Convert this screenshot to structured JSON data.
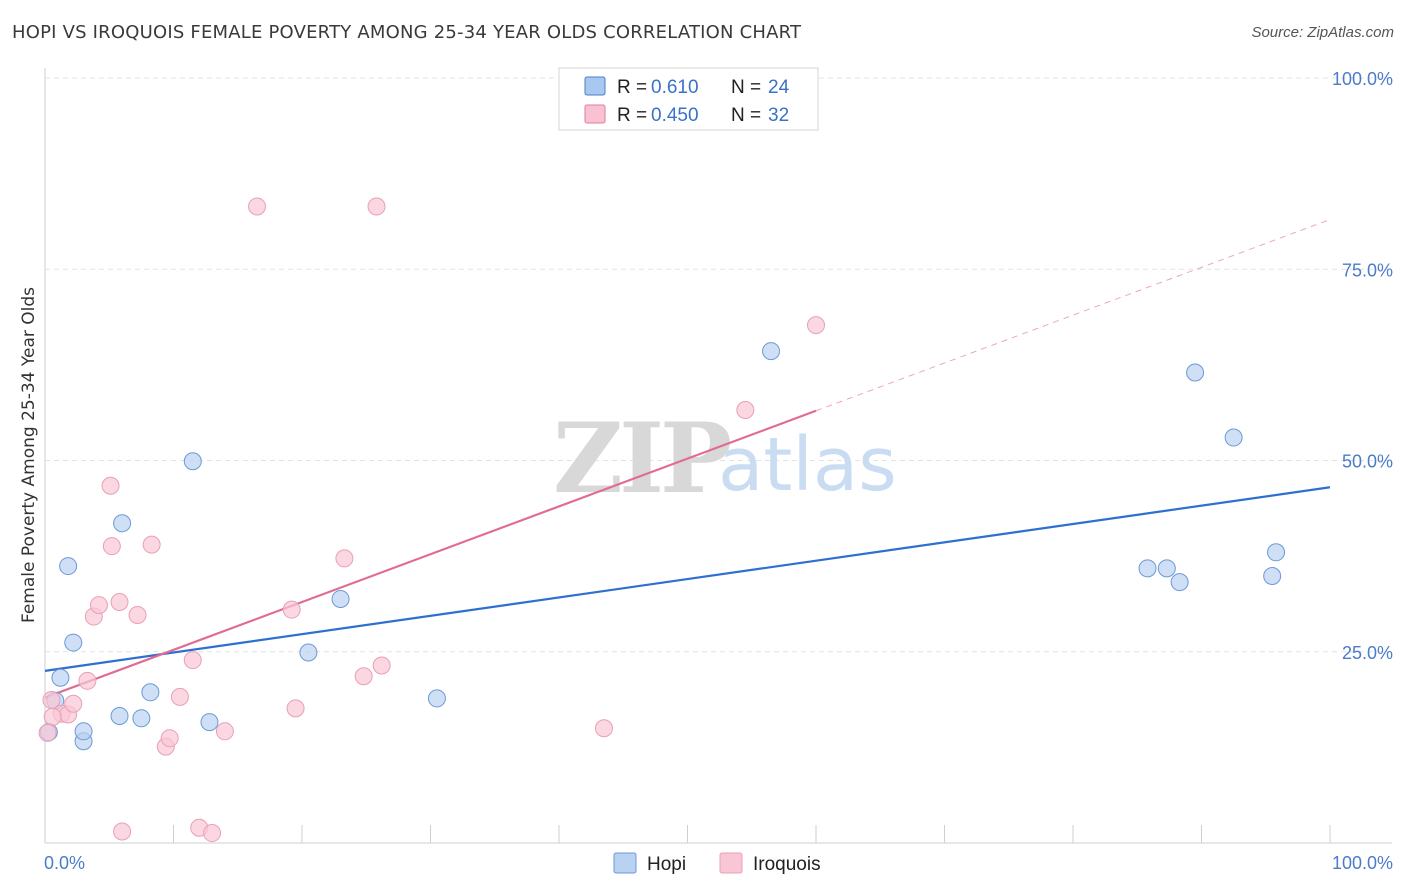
{
  "title": "HOPI VS IROQUOIS FEMALE POVERTY AMONG 25-34 YEAR OLDS CORRELATION CHART",
  "source": "Source: ZipAtlas.com",
  "watermark": {
    "part1": "ZIP",
    "part2": "atlas"
  },
  "chart_data": {
    "type": "scatter",
    "ylabel": "Female Poverty Among 25-34 Year Olds",
    "xlim": [
      0,
      100
    ],
    "ylim": [
      0,
      100
    ],
    "x_tick_labels": {
      "left": "0.0%",
      "right": "100.0%"
    },
    "y_ticks": [
      {
        "value": 25,
        "label": "25.0%"
      },
      {
        "value": 50,
        "label": "50.0%"
      },
      {
        "value": 75,
        "label": "75.0%"
      },
      {
        "value": 100,
        "label": "100.0%"
      }
    ],
    "legend_top": [
      {
        "r_label": "R =",
        "r": "0.610",
        "n_label": "N =",
        "n": "24",
        "color": "#a9c8ef",
        "edge": "#4a7cc9"
      },
      {
        "r_label": "R =",
        "r": "0.450",
        "n_label": "N =",
        "n": "32",
        "color": "#f8c2d2",
        "edge": "#e37a9b"
      }
    ],
    "series": [
      {
        "name": "Hopi",
        "fill": "#b9d2f2",
        "edge": "#6b9ad6",
        "line_color": "#2f6fcf",
        "trend": {
          "x0": 0,
          "y0": 22.5,
          "x1": 100,
          "y1": 46.5
        },
        "points": [
          [
            0.3,
            14.5
          ],
          [
            0.8,
            18.6
          ],
          [
            1.2,
            21.6
          ],
          [
            1.8,
            36.2
          ],
          [
            2.2,
            26.2
          ],
          [
            3.0,
            13.3
          ],
          [
            3.0,
            14.6
          ],
          [
            5.8,
            16.6
          ],
          [
            6.0,
            41.8
          ],
          [
            7.5,
            16.3
          ],
          [
            8.2,
            19.7
          ],
          [
            11.5,
            49.9
          ],
          [
            12.8,
            15.8
          ],
          [
            20.5,
            24.9
          ],
          [
            23.0,
            31.9
          ],
          [
            30.5,
            18.9
          ],
          [
            56.5,
            64.3
          ],
          [
            85.8,
            35.9
          ],
          [
            87.3,
            35.9
          ],
          [
            88.3,
            34.1
          ],
          [
            89.5,
            61.5
          ],
          [
            92.5,
            53.0
          ],
          [
            95.5,
            34.9
          ],
          [
            95.8,
            38.0
          ]
        ]
      },
      {
        "name": "Iroquois",
        "fill": "#f9c6d5",
        "edge": "#e8a0b6",
        "line_color": "#e06b93",
        "trend": {
          "x0": 0,
          "y0": 19.0,
          "x1": 60,
          "y1": 56.5
        },
        "trend_extended": {
          "x0": 60,
          "y0": 56.5,
          "x1": 100,
          "y1": 81.5
        },
        "points": [
          [
            0.5,
            18.7
          ],
          [
            1.3,
            16.9
          ],
          [
            1.8,
            16.8
          ],
          [
            2.2,
            18.2
          ],
          [
            3.3,
            21.2
          ],
          [
            3.8,
            29.6
          ],
          [
            4.2,
            31.1
          ],
          [
            5.1,
            46.7
          ],
          [
            5.2,
            38.8
          ],
          [
            5.8,
            31.5
          ],
          [
            6.0,
            1.5
          ],
          [
            7.2,
            29.8
          ],
          [
            8.3,
            39.0
          ],
          [
            9.4,
            12.6
          ],
          [
            9.7,
            13.7
          ],
          [
            10.5,
            19.1
          ],
          [
            11.5,
            23.9
          ],
          [
            12.0,
            2.0
          ],
          [
            13.0,
            1.3
          ],
          [
            14.0,
            14.6
          ],
          [
            16.5,
            83.2
          ],
          [
            19.2,
            30.5
          ],
          [
            19.5,
            17.6
          ],
          [
            23.3,
            37.2
          ],
          [
            24.8,
            21.8
          ],
          [
            25.8,
            83.2
          ],
          [
            26.2,
            23.2
          ],
          [
            43.5,
            15.0
          ],
          [
            54.5,
            56.6
          ],
          [
            60.0,
            67.7
          ],
          [
            0.2,
            14.4
          ],
          [
            0.6,
            16.5
          ]
        ]
      }
    ],
    "legend_bottom": [
      "Hopi",
      "Iroquois"
    ]
  }
}
